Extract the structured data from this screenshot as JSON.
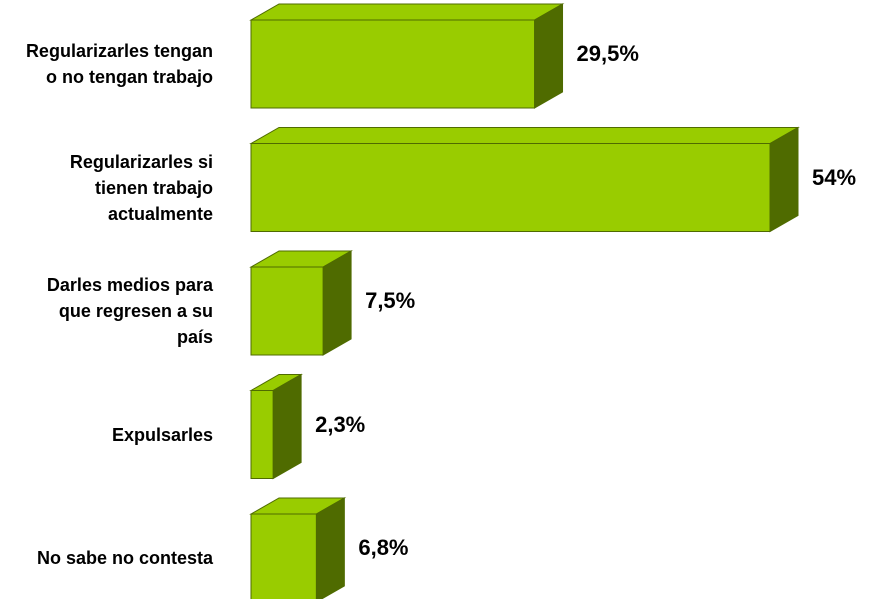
{
  "chart_data": {
    "type": "bar3d_horizontal",
    "categories": [
      "Regularizarles tengan o no tengan trabajo",
      "Regularizarles si tienen trabajo actualmente",
      "Darles medios para que regresen a su país",
      "Expulsarles",
      "No sabe no contesta"
    ],
    "values": [
      29.5,
      54,
      7.5,
      2.3,
      6.8
    ],
    "value_labels": [
      "29,5%",
      "54%",
      "7,5%",
      "2,3%",
      "6,8%"
    ],
    "color": "#99cc00",
    "side_color": "#4f6b00"
  }
}
